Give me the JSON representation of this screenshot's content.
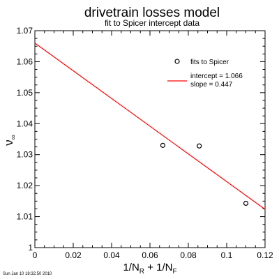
{
  "chart_data": {
    "type": "scatter",
    "title": "drivetrain losses model",
    "subtitle": "fit to Spicer intercept data",
    "xlabel": {
      "main": "1/N",
      "sub1": "R",
      "mid": " + 1/N",
      "sub2": "F"
    },
    "ylabel": {
      "main": "ν",
      "sub": "∞"
    },
    "xlim": [
      0,
      0.12
    ],
    "ylim": [
      1,
      1.07
    ],
    "x_ticks": [
      0,
      0.02,
      0.04,
      0.06,
      0.08,
      0.1,
      0.12
    ],
    "x_tick_labels": [
      "0",
      "0.02",
      "0.04",
      "0.06",
      "0.08",
      "0.1",
      "0.12"
    ],
    "y_ticks": [
      1,
      1.01,
      1.02,
      1.03,
      1.04,
      1.05,
      1.06,
      1.07
    ],
    "y_tick_labels": [
      "1",
      "1.01",
      "1.02",
      "1.03",
      "1.04",
      "1.05",
      "1.06",
      "1.07"
    ],
    "series": [
      {
        "name": "fits to Spicer",
        "kind": "points",
        "color": "#000000",
        "x": [
          0.0667,
          0.0857,
          0.11
        ],
        "y": [
          1.033,
          1.0328,
          1.0143
        ]
      },
      {
        "name": "intercept = 1.066",
        "name2": "slope = 0.447",
        "kind": "line",
        "color": "#ff0000",
        "x": [
          0,
          0.12
        ],
        "y": [
          1.066,
          1.01236
        ]
      }
    ],
    "legend_position": "top-right",
    "grid": false,
    "footer": "Sun Jan 10 18:32:50 2010"
  }
}
